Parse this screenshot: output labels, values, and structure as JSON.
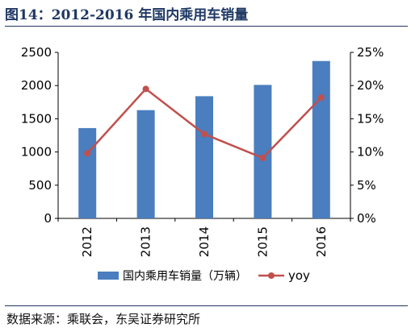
{
  "figure": {
    "title": "图14：2012-2016 年国内乘用车销量",
    "source": "数据来源：乘联会，东吴证券研究所"
  },
  "chart_data": {
    "type": "bar",
    "categories": [
      "2012",
      "2013",
      "2014",
      "2015",
      "2016"
    ],
    "series": [
      {
        "name": "国内乘用车销量（万辆）",
        "type": "bar",
        "axis": "left",
        "values": [
          1360,
          1630,
          1840,
          2010,
          2370
        ]
      },
      {
        "name": "yoy",
        "type": "line",
        "axis": "right",
        "values": [
          0.098,
          0.195,
          0.127,
          0.091,
          0.182
        ]
      }
    ],
    "ylim": [
      0,
      2500
    ],
    "yticks": [
      "0",
      "500",
      "1000",
      "1500",
      "2000",
      "2500"
    ],
    "y2lim": [
      0,
      0.25
    ],
    "y2ticks": [
      "0%",
      "5%",
      "10%",
      "15%",
      "20%",
      "25%"
    ],
    "xlabel": "",
    "ylabel": "",
    "y2label": "",
    "grid": false,
    "legend_position": "bottom",
    "colors": {
      "bar": "#4a7ebf",
      "line": "#c0504d"
    }
  }
}
